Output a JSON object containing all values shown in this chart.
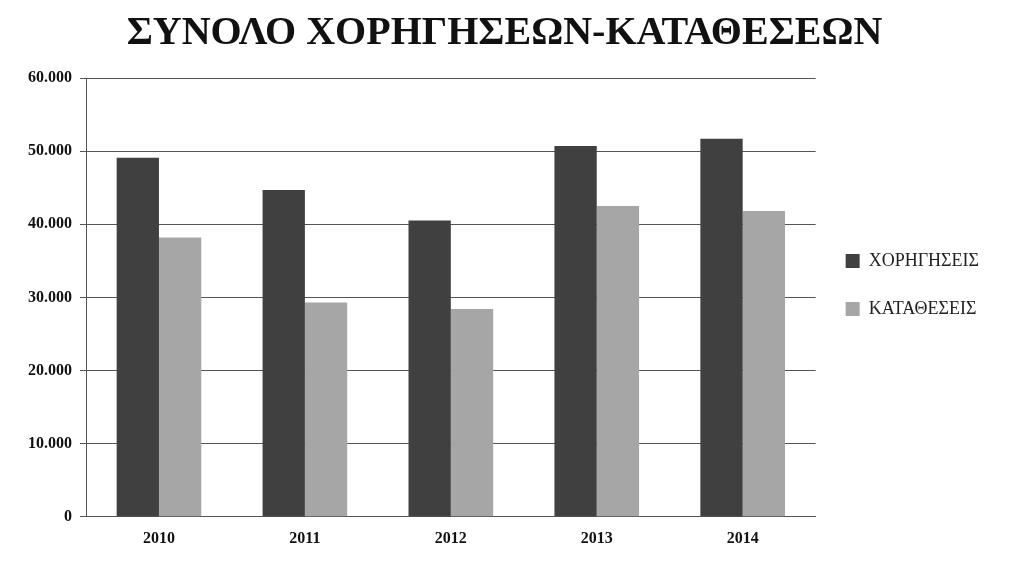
{
  "chart_data": {
    "type": "bar",
    "title": "ΣΥΝΟΛΟ ΧΟΡΗΓΗΣΕΩΝ-ΚΑΤΑΘΕΣΕΩΝ",
    "categories": [
      "2010",
      "2011",
      "2012",
      "2013",
      "2014"
    ],
    "series": [
      {
        "name": "ΧΟΡΗΓΗΣΕΙΣ",
        "color": "#404040",
        "values": [
          49100,
          44700,
          40500,
          50700,
          51700
        ]
      },
      {
        "name": "ΚΑΤΑΘΕΣΕΙΣ",
        "color": "#a6a6a6",
        "values": [
          38200,
          29300,
          28400,
          42500,
          41800
        ]
      }
    ],
    "ylim": [
      0,
      60000
    ],
    "yticks": [
      0,
      {
        "value": 10000,
        "label": "10.000"
      },
      {
        "value": 20000,
        "label": "20.000"
      },
      {
        "value": 30000,
        "label": "30.000"
      },
      {
        "value": 40000,
        "label": "40.000"
      },
      {
        "value": 50000,
        "label": "50.000"
      },
      {
        "value": 60000,
        "label": "60.000"
      }
    ],
    "grid": "y",
    "legend": "right"
  }
}
